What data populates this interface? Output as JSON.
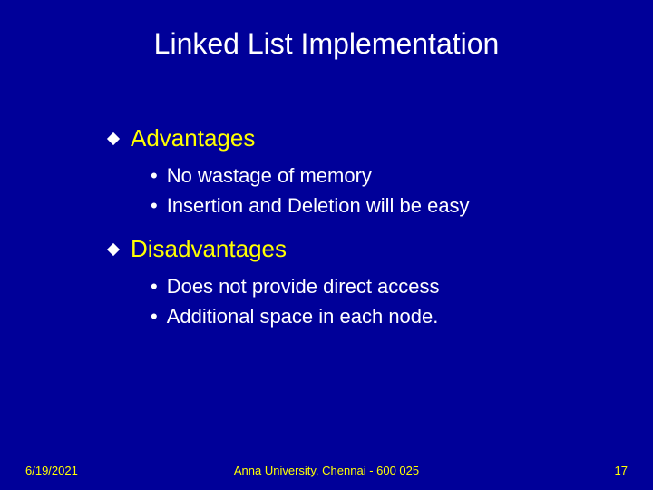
{
  "slide": {
    "title": "Linked List Implementation",
    "background_color": "#000099",
    "title_color": "#ffffff",
    "heading_color": "#ffff00",
    "body_color": "#ffffff",
    "footer_color": "#ffff00",
    "title_fontsize": 32,
    "heading_fontsize": 26,
    "body_fontsize": 22,
    "footer_fontsize": 13,
    "sections": [
      {
        "heading": "Advantages",
        "bullets": [
          "No wastage of memory",
          "Insertion and Deletion will be easy"
        ]
      },
      {
        "heading": "Disadvantages",
        "bullets": [
          "Does not provide direct access",
          "Additional space in each node."
        ]
      }
    ],
    "footer": {
      "date": "6/19/2021",
      "center": "Anna University, Chennai - 600 025",
      "page": "17"
    }
  }
}
